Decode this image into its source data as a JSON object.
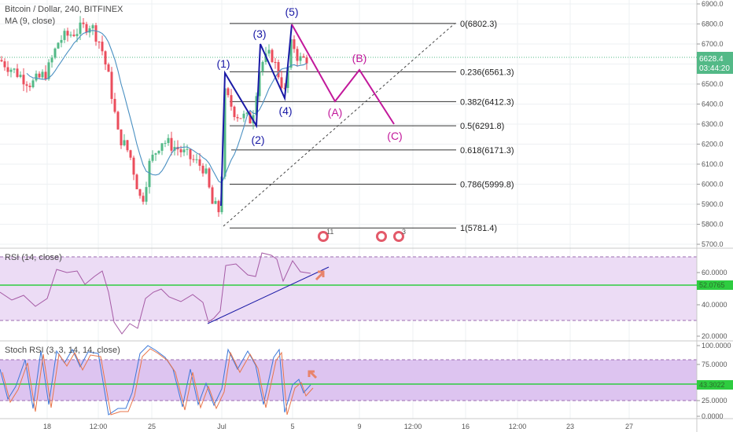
{
  "header": {
    "symbol_title": "Bitcoin / Dollar, 240, BITFINEX",
    "ma_label": "MA (9, close)",
    "rsi_label": "RSI (14, close)",
    "stoch_label": "Stoch RSI (3, 3, 14, 14, close)"
  },
  "colors": {
    "wave_impulse": "#1a1aa6",
    "wave_correction": "#c2189b",
    "fib_line": "#333333",
    "candle_up": "#53b987",
    "candle_down": "#eb4d5c",
    "ma_line": "#4a90c2",
    "rsi_line": "#a55aa5",
    "band_fill": "#ecdcf5",
    "green_level": "#2ecc40",
    "price_badge": "#53b987",
    "arrow": "#e8836b"
  },
  "price_badge": {
    "price": "6628.4",
    "countdown": "03:44:20"
  },
  "chart_data": [
    {
      "type": "candlestick",
      "title": "Bitcoin / Dollar, 240, BITFINEX",
      "y_ticks": [
        "6900.0",
        "6800.0",
        "6700.0",
        "6600.0",
        "6500.0",
        "6400.0",
        "6300.0",
        "6200.0",
        "6100.0",
        "6000.0",
        "5900.0",
        "5800.0",
        "5700.0"
      ],
      "ylim": [
        5700,
        6900
      ],
      "x_ticks": [
        "18",
        "12:00",
        "25",
        "Jul",
        "5",
        "9",
        "12:00",
        "16",
        "12:00",
        "23",
        "27"
      ],
      "fib_levels": [
        {
          "label": "0(6802.3)",
          "value": 6802.3
        },
        {
          "label": "0.236(6561.3)",
          "value": 6561.3
        },
        {
          "label": "0.382(6412.3)",
          "value": 6412.3
        },
        {
          "label": "0.5(6291.8)",
          "value": 6291.8
        },
        {
          "label": "0.618(6171.3)",
          "value": 6171.3
        },
        {
          "label": "0.786(5999.8)",
          "value": 5999.8
        },
        {
          "label": "1(5781.4)",
          "value": 5781.4
        }
      ],
      "wave_labels": [
        "(1)",
        "(2)",
        "(3)",
        "(4)",
        "(5)",
        "(A)",
        "(B)",
        "(C)"
      ],
      "event_counts": [
        "11",
        "3"
      ],
      "current_price": 6628.4
    },
    {
      "type": "line",
      "title": "RSI (14, close)",
      "y_ticks": [
        "60.0000",
        "40.0000",
        "20.0000"
      ],
      "ylim": [
        20,
        70
      ],
      "band": [
        30,
        70
      ],
      "current_value": "52.0765",
      "green_level": 52.08
    },
    {
      "type": "line",
      "title": "Stoch RSI (3, 3, 14, 14, close)",
      "y_ticks": [
        "100.0000",
        "75.0000",
        "50.0000",
        "25.0000",
        "0.0000"
      ],
      "ylim": [
        0,
        100
      ],
      "band": [
        20,
        80
      ],
      "current_value": "43.3022",
      "green_level": 43.3
    }
  ]
}
